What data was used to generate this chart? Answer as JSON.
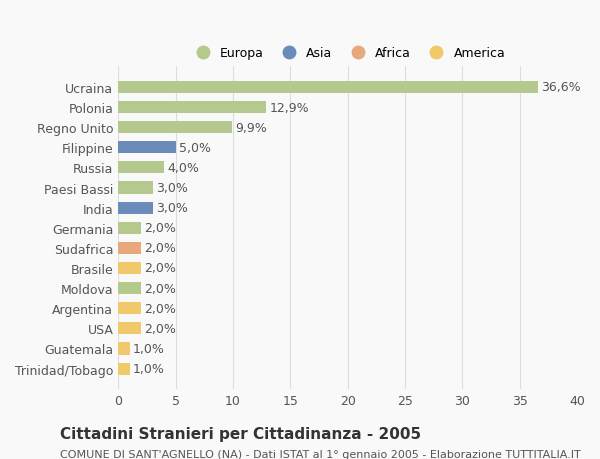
{
  "categories": [
    "Trinidad/Tobago",
    "Guatemala",
    "USA",
    "Argentina",
    "Moldova",
    "Brasile",
    "Sudafrica",
    "Germania",
    "India",
    "Paesi Bassi",
    "Russia",
    "Filippine",
    "Regno Unito",
    "Polonia",
    "Ucraina"
  ],
  "values": [
    1.0,
    1.0,
    2.0,
    2.0,
    2.0,
    2.0,
    2.0,
    2.0,
    3.0,
    3.0,
    4.0,
    5.0,
    9.9,
    12.9,
    36.6
  ],
  "labels": [
    "1,0%",
    "1,0%",
    "2,0%",
    "2,0%",
    "2,0%",
    "2,0%",
    "2,0%",
    "2,0%",
    "3,0%",
    "3,0%",
    "4,0%",
    "5,0%",
    "9,9%",
    "12,9%",
    "36,6%"
  ],
  "continents": [
    "America",
    "America",
    "America",
    "America",
    "Europa",
    "America",
    "Africa",
    "Europa",
    "Asia",
    "Europa",
    "Europa",
    "Asia",
    "Europa",
    "Europa",
    "Europa"
  ],
  "legend_order": [
    "Europa",
    "Asia",
    "Africa",
    "America"
  ],
  "legend_colors": [
    "#b5c98e",
    "#6b8cba",
    "#e8a87c",
    "#f0c96a"
  ],
  "bar_colors": [
    "#f0c96a",
    "#f0c96a",
    "#f0c96a",
    "#f0c96a",
    "#b5c98e",
    "#f0c96a",
    "#e8a87c",
    "#b5c98e",
    "#6b8cba",
    "#b5c98e",
    "#b5c98e",
    "#6b8cba",
    "#b5c98e",
    "#b5c98e",
    "#b5c98e"
  ],
  "xlim": [
    0,
    40
  ],
  "xticks": [
    0,
    5,
    10,
    15,
    20,
    25,
    30,
    35,
    40
  ],
  "title": "Cittadini Stranieri per Cittadinanza - 2005",
  "subtitle": "COMUNE DI SANT'AGNELLO (NA) - Dati ISTAT al 1° gennaio 2005 - Elaborazione TUTTITALIA.IT",
  "background_color": "#f9f9f9",
  "grid_color": "#dddddd",
  "bar_height": 0.6,
  "label_fontsize": 9,
  "tick_fontsize": 9,
  "title_fontsize": 11,
  "subtitle_fontsize": 8
}
